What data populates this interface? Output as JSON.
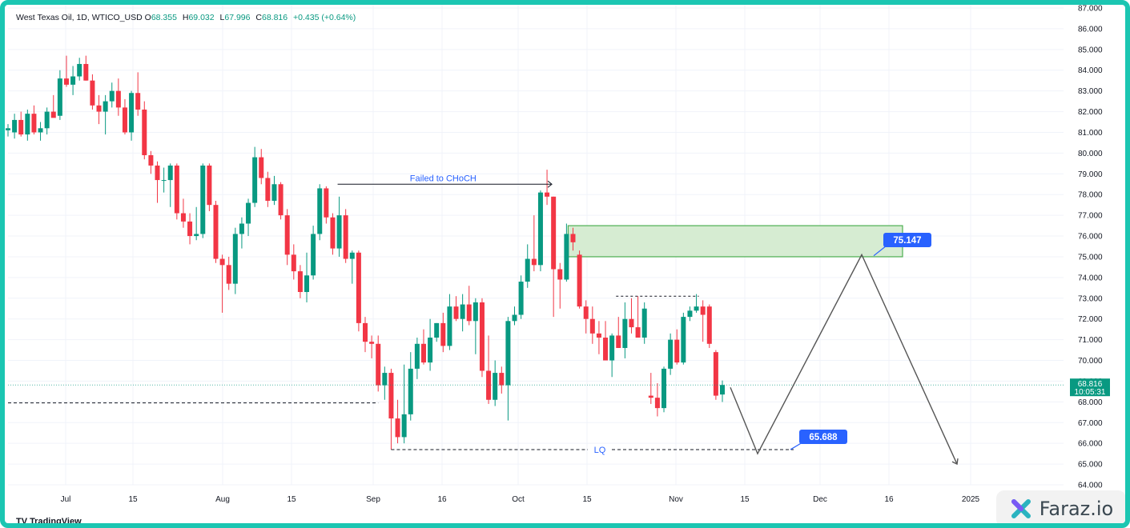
{
  "legend": {
    "title": "West Texas Oil, 1D, WTICO_USD",
    "open_label": "O",
    "open": "68.355",
    "high_label": "H",
    "high": "69.032",
    "low_label": "L",
    "low": "67.996",
    "close_label": "C",
    "close": "68.816",
    "change": "+0.435 (+0.64%)"
  },
  "price_tag": {
    "price": "68.816",
    "countdown": "10:05:31"
  },
  "branding": {
    "tradingview": "TradingView",
    "watermark": "Faraz.io"
  },
  "colors": {
    "up": "#089981",
    "down": "#f23645",
    "zone_fill": "#d6ecd2",
    "zone_border": "#4caf50",
    "callout": "#2962ff",
    "frame": "#1bc6b2"
  },
  "chart_data": {
    "type": "candlestick",
    "ylim": [
      64,
      87
    ],
    "y_ticks": [
      "64.000",
      "65.000",
      "66.000",
      "67.000",
      "68.000",
      "69.000",
      "70.000",
      "71.000",
      "72.000",
      "73.000",
      "74.000",
      "75.000",
      "76.000",
      "77.000",
      "78.000",
      "79.000",
      "80.000",
      "81.000",
      "82.000",
      "83.000",
      "84.000",
      "85.000",
      "86.000",
      "87.000"
    ],
    "x_ticks": [
      "Jul",
      "15",
      "Aug",
      "15",
      "Sep",
      "16",
      "Oct",
      "15",
      "Nov",
      "15",
      "Dec",
      "16",
      "2025"
    ],
    "candles": [
      {
        "o": 81.1,
        "h": 81.4,
        "l": 80.8,
        "c": 81.2
      },
      {
        "o": 81.0,
        "h": 81.9,
        "l": 80.7,
        "c": 81.6
      },
      {
        "o": 81.6,
        "h": 82.0,
        "l": 80.8,
        "c": 80.9
      },
      {
        "o": 80.9,
        "h": 82.1,
        "l": 80.6,
        "c": 81.9
      },
      {
        "o": 81.9,
        "h": 82.3,
        "l": 80.9,
        "c": 81.0
      },
      {
        "o": 81.0,
        "h": 81.5,
        "l": 80.6,
        "c": 81.2
      },
      {
        "o": 81.2,
        "h": 82.2,
        "l": 80.9,
        "c": 82.0
      },
      {
        "o": 82.0,
        "h": 82.8,
        "l": 81.8,
        "c": 81.7
      },
      {
        "o": 81.8,
        "h": 84.0,
        "l": 81.6,
        "c": 83.6
      },
      {
        "o": 83.6,
        "h": 84.7,
        "l": 83.2,
        "c": 83.3
      },
      {
        "o": 83.3,
        "h": 84.2,
        "l": 82.8,
        "c": 83.7
      },
      {
        "o": 83.7,
        "h": 84.6,
        "l": 83.5,
        "c": 84.3
      },
      {
        "o": 84.3,
        "h": 84.7,
        "l": 83.5,
        "c": 83.5
      },
      {
        "o": 83.5,
        "h": 83.8,
        "l": 82.1,
        "c": 82.3
      },
      {
        "o": 82.3,
        "h": 82.8,
        "l": 81.4,
        "c": 82.0
      },
      {
        "o": 82.0,
        "h": 82.8,
        "l": 80.9,
        "c": 82.5
      },
      {
        "o": 82.5,
        "h": 83.4,
        "l": 82.2,
        "c": 83.0
      },
      {
        "o": 83.0,
        "h": 83.6,
        "l": 81.8,
        "c": 82.2
      },
      {
        "o": 82.2,
        "h": 82.6,
        "l": 80.9,
        "c": 81.0
      },
      {
        "o": 81.0,
        "h": 83.0,
        "l": 80.6,
        "c": 82.9
      },
      {
        "o": 82.9,
        "h": 83.9,
        "l": 81.8,
        "c": 82.1
      },
      {
        "o": 82.1,
        "h": 82.5,
        "l": 79.7,
        "c": 79.9
      },
      {
        "o": 79.9,
        "h": 80.1,
        "l": 79.0,
        "c": 79.4
      },
      {
        "o": 79.4,
        "h": 79.6,
        "l": 77.6,
        "c": 78.7
      },
      {
        "o": 78.7,
        "h": 79.3,
        "l": 78.1,
        "c": 78.7
      },
      {
        "o": 78.7,
        "h": 79.5,
        "l": 77.4,
        "c": 79.4
      },
      {
        "o": 79.4,
        "h": 79.5,
        "l": 76.8,
        "c": 77.1
      },
      {
        "o": 77.1,
        "h": 77.8,
        "l": 76.4,
        "c": 76.7
      },
      {
        "o": 76.7,
        "h": 77.1,
        "l": 75.6,
        "c": 76.0
      },
      {
        "o": 76.0,
        "h": 77.4,
        "l": 75.8,
        "c": 76.1
      },
      {
        "o": 76.1,
        "h": 79.5,
        "l": 75.9,
        "c": 79.4
      },
      {
        "o": 79.4,
        "h": 79.5,
        "l": 77.2,
        "c": 77.5
      },
      {
        "o": 77.5,
        "h": 77.7,
        "l": 74.7,
        "c": 74.9
      },
      {
        "o": 74.9,
        "h": 75.1,
        "l": 72.3,
        "c": 74.6
      },
      {
        "o": 74.6,
        "h": 75.0,
        "l": 73.4,
        "c": 73.7
      },
      {
        "o": 73.7,
        "h": 76.4,
        "l": 73.2,
        "c": 76.1
      },
      {
        "o": 76.1,
        "h": 76.9,
        "l": 75.4,
        "c": 76.6
      },
      {
        "o": 76.6,
        "h": 77.8,
        "l": 76.0,
        "c": 77.6
      },
      {
        "o": 77.6,
        "h": 80.3,
        "l": 77.4,
        "c": 79.8
      },
      {
        "o": 79.8,
        "h": 80.2,
        "l": 78.5,
        "c": 78.8
      },
      {
        "o": 78.8,
        "h": 79.1,
        "l": 77.4,
        "c": 77.7
      },
      {
        "o": 77.7,
        "h": 78.9,
        "l": 77.5,
        "c": 78.5
      },
      {
        "o": 78.5,
        "h": 78.6,
        "l": 76.8,
        "c": 77.0
      },
      {
        "o": 77.0,
        "h": 77.3,
        "l": 74.6,
        "c": 75.1
      },
      {
        "o": 75.1,
        "h": 75.6,
        "l": 73.9,
        "c": 74.3
      },
      {
        "o": 74.3,
        "h": 74.6,
        "l": 73.0,
        "c": 73.3
      },
      {
        "o": 73.3,
        "h": 75.2,
        "l": 72.8,
        "c": 74.1
      },
      {
        "o": 74.1,
        "h": 76.5,
        "l": 73.9,
        "c": 76.1
      },
      {
        "o": 76.1,
        "h": 78.5,
        "l": 75.8,
        "c": 78.3
      },
      {
        "o": 78.3,
        "h": 78.4,
        "l": 76.6,
        "c": 76.9
      },
      {
        "o": 76.9,
        "h": 77.1,
        "l": 75.1,
        "c": 75.4
      },
      {
        "o": 75.4,
        "h": 77.9,
        "l": 75.0,
        "c": 77.0
      },
      {
        "o": 77.0,
        "h": 77.3,
        "l": 74.7,
        "c": 74.9
      },
      {
        "o": 74.9,
        "h": 75.3,
        "l": 73.7,
        "c": 75.2
      },
      {
        "o": 75.2,
        "h": 75.3,
        "l": 71.4,
        "c": 71.8
      },
      {
        "o": 71.8,
        "h": 72.1,
        "l": 70.4,
        "c": 70.9
      },
      {
        "o": 70.9,
        "h": 71.2,
        "l": 70.1,
        "c": 70.8
      },
      {
        "o": 70.8,
        "h": 71.2,
        "l": 68.5,
        "c": 68.8
      },
      {
        "o": 68.8,
        "h": 69.7,
        "l": 68.1,
        "c": 69.4
      },
      {
        "o": 69.4,
        "h": 69.6,
        "l": 65.7,
        "c": 67.2
      },
      {
        "o": 67.2,
        "h": 68.1,
        "l": 66.0,
        "c": 66.3
      },
      {
        "o": 66.3,
        "h": 69.8,
        "l": 66.0,
        "c": 67.4
      },
      {
        "o": 67.4,
        "h": 70.4,
        "l": 67.1,
        "c": 69.6
      },
      {
        "o": 69.6,
        "h": 71.1,
        "l": 69.1,
        "c": 70.8
      },
      {
        "o": 70.8,
        "h": 71.5,
        "l": 69.8,
        "c": 69.9
      },
      {
        "o": 69.9,
        "h": 72.0,
        "l": 69.5,
        "c": 71.1
      },
      {
        "o": 71.1,
        "h": 71.8,
        "l": 70.9,
        "c": 71.8
      },
      {
        "o": 71.8,
        "h": 72.3,
        "l": 70.4,
        "c": 70.7
      },
      {
        "o": 70.7,
        "h": 73.2,
        "l": 70.5,
        "c": 72.6
      },
      {
        "o": 72.6,
        "h": 73.1,
        "l": 71.9,
        "c": 72.0
      },
      {
        "o": 72.0,
        "h": 73.2,
        "l": 71.4,
        "c": 72.7
      },
      {
        "o": 72.7,
        "h": 73.6,
        "l": 71.7,
        "c": 71.9
      },
      {
        "o": 71.9,
        "h": 73.0,
        "l": 70.3,
        "c": 72.8
      },
      {
        "o": 72.8,
        "h": 73.0,
        "l": 69.2,
        "c": 69.5
      },
      {
        "o": 69.5,
        "h": 71.2,
        "l": 67.9,
        "c": 68.1
      },
      {
        "o": 68.1,
        "h": 70.0,
        "l": 67.8,
        "c": 69.4
      },
      {
        "o": 69.4,
        "h": 69.7,
        "l": 68.4,
        "c": 68.8
      },
      {
        "o": 68.8,
        "h": 72.1,
        "l": 67.1,
        "c": 71.9
      },
      {
        "o": 71.9,
        "h": 72.6,
        "l": 71.7,
        "c": 72.2
      },
      {
        "o": 72.2,
        "h": 74.1,
        "l": 72.0,
        "c": 73.8
      },
      {
        "o": 73.8,
        "h": 75.6,
        "l": 73.5,
        "c": 74.9
      },
      {
        "o": 74.9,
        "h": 77.0,
        "l": 74.3,
        "c": 74.6
      },
      {
        "o": 74.6,
        "h": 78.2,
        "l": 74.3,
        "c": 78.1
      },
      {
        "o": 78.1,
        "h": 79.2,
        "l": 77.5,
        "c": 77.9
      },
      {
        "o": 77.9,
        "h": 77.9,
        "l": 72.1,
        "c": 74.4
      },
      {
        "o": 74.4,
        "h": 74.7,
        "l": 72.5,
        "c": 73.9
      },
      {
        "o": 73.9,
        "h": 76.6,
        "l": 73.8,
        "c": 76.1
      },
      {
        "o": 76.1,
        "h": 76.4,
        "l": 75.3,
        "c": 75.7
      },
      {
        "o": 75.1,
        "h": 75.3,
        "l": 72.5,
        "c": 72.6
      },
      {
        "o": 72.6,
        "h": 72.9,
        "l": 71.3,
        "c": 72.0
      },
      {
        "o": 72.0,
        "h": 72.6,
        "l": 70.8,
        "c": 71.3
      },
      {
        "o": 71.3,
        "h": 71.9,
        "l": 70.3,
        "c": 71.1
      },
      {
        "o": 71.1,
        "h": 71.9,
        "l": 70.1,
        "c": 70.0
      },
      {
        "o": 70.0,
        "h": 71.3,
        "l": 69.2,
        "c": 71.2
      },
      {
        "o": 71.2,
        "h": 72.1,
        "l": 70.6,
        "c": 70.6
      },
      {
        "o": 70.6,
        "h": 72.8,
        "l": 70.1,
        "c": 72.0
      },
      {
        "o": 72.0,
        "h": 73.0,
        "l": 71.3,
        "c": 71.6
      },
      {
        "o": 71.6,
        "h": 73.1,
        "l": 71.3,
        "c": 71.1
      },
      {
        "o": 71.1,
        "h": 72.8,
        "l": 70.8,
        "c": 72.5
      },
      {
        "o": 68.3,
        "h": 69.4,
        "l": 67.9,
        "c": 68.2
      },
      {
        "o": 68.2,
        "h": 68.9,
        "l": 67.3,
        "c": 67.7
      },
      {
        "o": 67.7,
        "h": 69.7,
        "l": 67.5,
        "c": 69.6
      },
      {
        "o": 69.6,
        "h": 71.3,
        "l": 69.3,
        "c": 71.0
      },
      {
        "o": 71.0,
        "h": 71.5,
        "l": 69.8,
        "c": 69.9
      },
      {
        "o": 69.9,
        "h": 72.3,
        "l": 69.8,
        "c": 72.1
      },
      {
        "o": 72.1,
        "h": 72.6,
        "l": 71.9,
        "c": 72.4
      },
      {
        "o": 72.4,
        "h": 73.2,
        "l": 72.3,
        "c": 72.6
      },
      {
        "o": 72.6,
        "h": 72.9,
        "l": 70.9,
        "c": 72.2
      },
      {
        "o": 72.6,
        "h": 72.7,
        "l": 70.6,
        "c": 70.8
      },
      {
        "o": 70.4,
        "h": 70.5,
        "l": 68.1,
        "c": 68.3
      },
      {
        "o": 68.355,
        "h": 69.032,
        "l": 67.996,
        "c": 68.816
      }
    ],
    "annotations": {
      "choch_label": "Failed to CHoCH",
      "choch_level": 78.5,
      "lq_label": "LQ",
      "lq_level": 65.7,
      "resistance_level": 67.95,
      "equal_highs_level": 73.1,
      "zone": {
        "top": 76.5,
        "bottom": 75.0
      },
      "target_high": "75.147",
      "target_low": "65.688",
      "projection_path": [
        68.7,
        65.5,
        75.1,
        65.0
      ]
    }
  }
}
